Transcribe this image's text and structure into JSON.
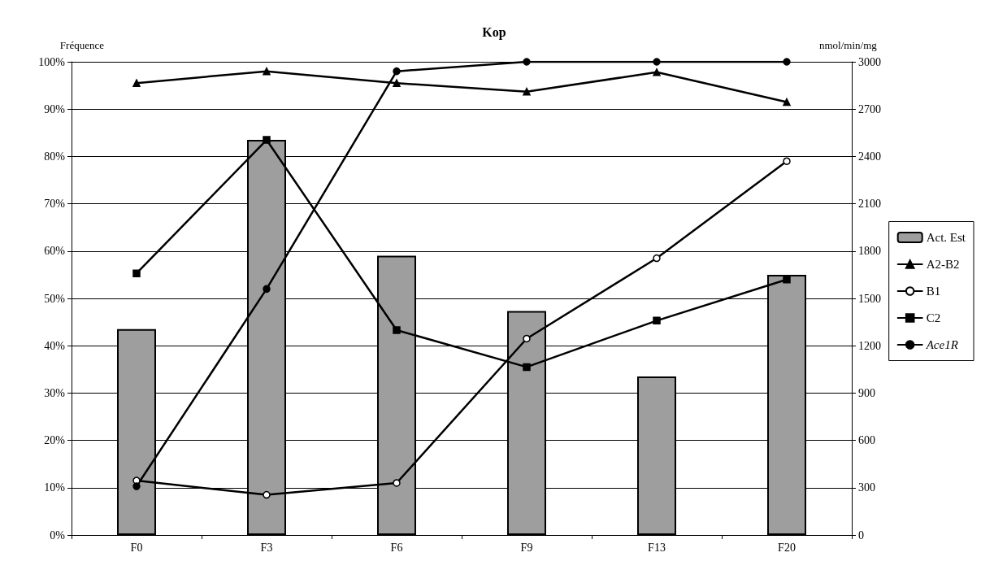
{
  "chart_data": {
    "type": "line",
    "title": "Kop",
    "ylabel": "Fréquence",
    "y2label": "nmol/min/mg",
    "categories": [
      "F0",
      "F3",
      "F6",
      "F9",
      "F13",
      "F20"
    ],
    "series": [
      {
        "name": "Act. Est",
        "type": "bar",
        "axis": "y2",
        "color": "#9e9e9e",
        "values": [
          1305,
          2505,
          1770,
          1420,
          1005,
          1650
        ]
      },
      {
        "name": "A2-B2",
        "color": "#000000",
        "marker": "triangle",
        "values": [
          95.5,
          98,
          95.5,
          93.7,
          97.8,
          91.5
        ]
      },
      {
        "name": "B1",
        "color": "#000000",
        "marker": "circle",
        "values": [
          11.5,
          8.5,
          11,
          41.5,
          58.5,
          79
        ]
      },
      {
        "name": "C2",
        "color": "#000000",
        "marker": "square",
        "values": [
          55.3,
          83.5,
          43.3,
          35.5,
          45.3,
          54
        ]
      },
      {
        "name": "Ace1R",
        "color": "#000000",
        "marker": "circle",
        "values": [
          10.3,
          52,
          98,
          100,
          100,
          100
        ]
      }
    ],
    "ylim": [
      0,
      100
    ],
    "yticks": [
      {
        "value": 0,
        "label": "0%"
      },
      {
        "value": 10,
        "label": "10%"
      },
      {
        "value": 20,
        "label": "20%"
      },
      {
        "value": 30,
        "label": "30%"
      },
      {
        "value": 40,
        "label": "40%"
      },
      {
        "value": 50,
        "label": "50%"
      },
      {
        "value": 60,
        "label": "60%"
      },
      {
        "value": 70,
        "label": "70%"
      },
      {
        "value": 80,
        "label": "80%"
      },
      {
        "value": 90,
        "label": "90%"
      },
      {
        "value": 100,
        "label": "100%"
      }
    ],
    "y2lim": [
      0,
      3000
    ],
    "y2ticks": [
      0,
      300,
      600,
      900,
      1200,
      1500,
      1800,
      2100,
      2400,
      2700,
      3000
    ],
    "grid": "y",
    "legend": "right",
    "line_style": "solid"
  }
}
